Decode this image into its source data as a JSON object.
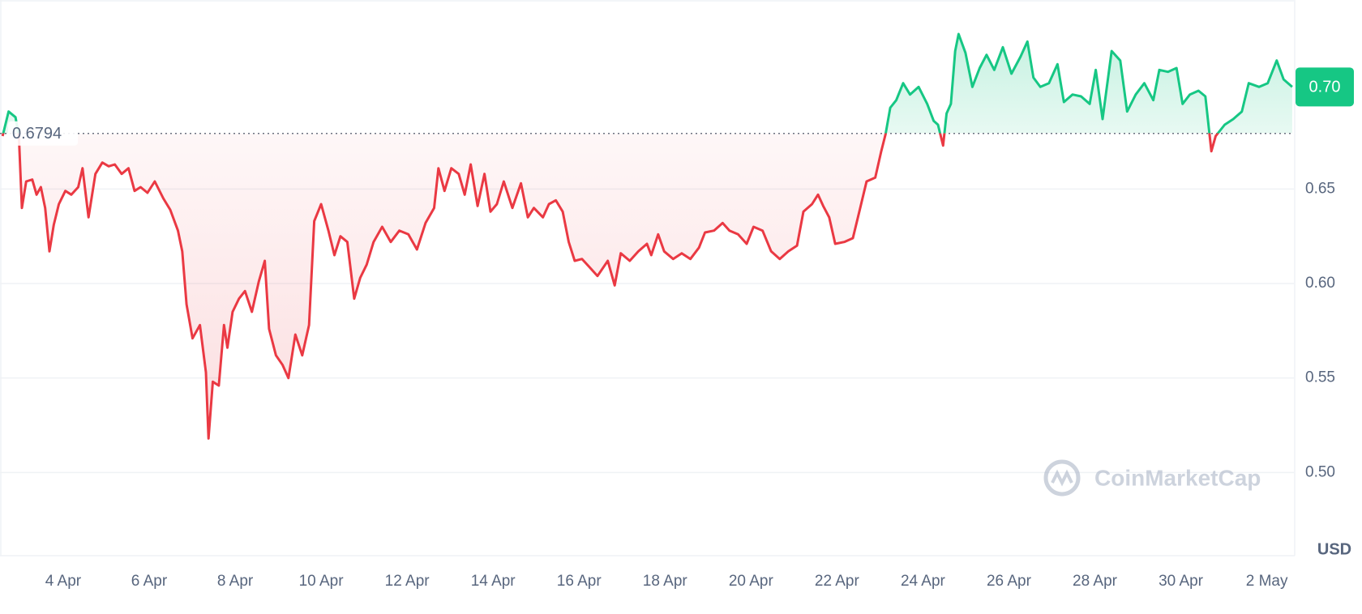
{
  "chart_data": {
    "type": "line",
    "unit": "USD",
    "watermark": "CoinMarketCap",
    "baseline": {
      "value": 0.6794,
      "label": "0.6794"
    },
    "current_price": {
      "value": 0.704,
      "label": "0.70"
    },
    "color_up": "#16c784",
    "color_down": "#ea3943",
    "xlim": [
      2.53,
      32.63
    ],
    "ylim": [
      0.456,
      0.75
    ],
    "yticks": [
      {
        "value": 0.5,
        "label": "0.50"
      },
      {
        "value": 0.55,
        "label": "0.55"
      },
      {
        "value": 0.6,
        "label": "0.60"
      },
      {
        "value": 0.65,
        "label": "0.65"
      }
    ],
    "xticks": [
      {
        "value": 4,
        "label": "4 Apr"
      },
      {
        "value": 6,
        "label": "6 Apr"
      },
      {
        "value": 8,
        "label": "8 Apr"
      },
      {
        "value": 10,
        "label": "10 Apr"
      },
      {
        "value": 12,
        "label": "12 Apr"
      },
      {
        "value": 14,
        "label": "14 Apr"
      },
      {
        "value": 16,
        "label": "16 Apr"
      },
      {
        "value": 18,
        "label": "18 Apr"
      },
      {
        "value": 20,
        "label": "20 Apr"
      },
      {
        "value": 22,
        "label": "22 Apr"
      },
      {
        "value": 24,
        "label": "24 Apr"
      },
      {
        "value": 26,
        "label": "26 Apr"
      },
      {
        "value": 28,
        "label": "28 Apr"
      },
      {
        "value": 30,
        "label": "30 Apr"
      },
      {
        "value": 32,
        "label": "2 May"
      }
    ],
    "grid": true,
    "x": [
      2.59,
      2.73,
      2.89,
      2.97,
      3.04,
      3.14,
      3.28,
      3.38,
      3.48,
      3.58,
      3.68,
      3.78,
      3.9,
      4.05,
      4.19,
      4.35,
      4.45,
      4.59,
      4.75,
      4.91,
      5.06,
      5.2,
      5.36,
      5.52,
      5.66,
      5.8,
      5.96,
      6.13,
      6.33,
      6.49,
      6.67,
      6.77,
      6.87,
      7.01,
      7.18,
      7.32,
      7.38,
      7.48,
      7.62,
      7.74,
      7.82,
      7.94,
      8.09,
      8.23,
      8.39,
      8.55,
      8.69,
      8.79,
      8.95,
      9.1,
      9.24,
      9.4,
      9.56,
      9.72,
      9.84,
      10.0,
      10.17,
      10.31,
      10.45,
      10.61,
      10.77,
      10.91,
      11.06,
      11.22,
      11.42,
      11.62,
      11.82,
      12.03,
      12.23,
      12.43,
      12.63,
      12.73,
      12.87,
      13.03,
      13.2,
      13.34,
      13.48,
      13.64,
      13.8,
      13.94,
      14.09,
      14.25,
      14.45,
      14.65,
      14.81,
      14.95,
      15.16,
      15.3,
      15.46,
      15.62,
      15.76,
      15.9,
      16.07,
      16.23,
      16.43,
      16.67,
      16.83,
      16.97,
      17.18,
      17.38,
      17.58,
      17.68,
      17.84,
      17.98,
      18.19,
      18.39,
      18.59,
      18.79,
      18.93,
      19.14,
      19.34,
      19.5,
      19.7,
      19.9,
      20.06,
      20.27,
      20.47,
      20.67,
      20.87,
      21.07,
      21.22,
      21.42,
      21.56,
      21.68,
      21.82,
      21.96,
      22.17,
      22.37,
      22.53,
      22.69,
      22.89,
      23.03,
      23.13,
      23.24,
      23.38,
      23.54,
      23.7,
      23.9,
      24.1,
      24.25,
      24.35,
      24.47,
      24.55,
      24.65,
      24.75,
      24.83,
      24.99,
      25.15,
      25.32,
      25.48,
      25.66,
      25.86,
      26.06,
      26.27,
      26.43,
      26.57,
      26.73,
      26.93,
      27.13,
      27.28,
      27.48,
      27.68,
      27.88,
      28.02,
      28.18,
      28.39,
      28.59,
      28.75,
      28.95,
      29.15,
      29.36,
      29.5,
      29.7,
      29.9,
      30.04,
      30.21,
      30.41,
      30.57,
      30.71,
      30.81,
      31.02,
      31.22,
      31.42,
      31.58,
      31.82,
      32.02,
      32.23,
      32.39,
      32.59
    ],
    "values": [
      0.678,
      0.691,
      0.688,
      0.678,
      0.64,
      0.654,
      0.655,
      0.647,
      0.651,
      0.64,
      0.617,
      0.631,
      0.642,
      0.649,
      0.647,
      0.651,
      0.661,
      0.635,
      0.658,
      0.664,
      0.662,
      0.663,
      0.658,
      0.661,
      0.649,
      0.651,
      0.648,
      0.654,
      0.645,
      0.639,
      0.628,
      0.617,
      0.589,
      0.571,
      0.578,
      0.553,
      0.518,
      0.548,
      0.546,
      0.578,
      0.566,
      0.585,
      0.592,
      0.596,
      0.585,
      0.601,
      0.612,
      0.576,
      0.562,
      0.557,
      0.55,
      0.573,
      0.562,
      0.578,
      0.633,
      0.642,
      0.628,
      0.615,
      0.625,
      0.622,
      0.592,
      0.603,
      0.61,
      0.622,
      0.63,
      0.622,
      0.628,
      0.626,
      0.618,
      0.632,
      0.64,
      0.661,
      0.649,
      0.661,
      0.658,
      0.647,
      0.663,
      0.641,
      0.658,
      0.638,
      0.642,
      0.654,
      0.64,
      0.653,
      0.635,
      0.64,
      0.635,
      0.642,
      0.644,
      0.638,
      0.622,
      0.612,
      0.613,
      0.609,
      0.604,
      0.612,
      0.599,
      0.616,
      0.612,
      0.617,
      0.621,
      0.615,
      0.626,
      0.617,
      0.613,
      0.616,
      0.613,
      0.619,
      0.627,
      0.628,
      0.632,
      0.628,
      0.626,
      0.621,
      0.63,
      0.628,
      0.617,
      0.613,
      0.617,
      0.62,
      0.638,
      0.642,
      0.647,
      0.641,
      0.635,
      0.621,
      0.622,
      0.624,
      0.639,
      0.654,
      0.656,
      0.67,
      0.679,
      0.693,
      0.697,
      0.706,
      0.7,
      0.704,
      0.695,
      0.686,
      0.684,
      0.673,
      0.69,
      0.695,
      0.723,
      0.732,
      0.722,
      0.704,
      0.714,
      0.721,
      0.713,
      0.725,
      0.711,
      0.72,
      0.728,
      0.709,
      0.704,
      0.706,
      0.716,
      0.696,
      0.7,
      0.699,
      0.695,
      0.713,
      0.687,
      0.723,
      0.718,
      0.691,
      0.7,
      0.706,
      0.697,
      0.713,
      0.712,
      0.714,
      0.695,
      0.7,
      0.702,
      0.699,
      0.67,
      0.678,
      0.684,
      0.687,
      0.691,
      0.706,
      0.704,
      0.706,
      0.718,
      0.708,
      0.704
    ]
  }
}
